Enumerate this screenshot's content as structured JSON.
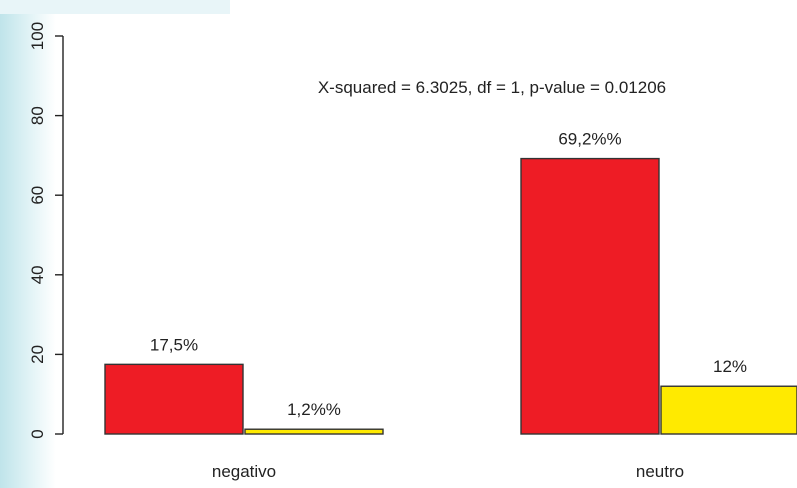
{
  "chart_data": {
    "type": "bar",
    "categories": [
      "negativo",
      "neutro"
    ],
    "series": [
      {
        "color": "#ee1c25",
        "values": [
          17.5,
          69.2
        ],
        "labels": [
          "17,5%",
          "69,2%%"
        ]
      },
      {
        "color": "#ffea00",
        "values": [
          1.2,
          12
        ],
        "labels": [
          "1,2%%",
          "12%"
        ]
      }
    ],
    "annotation": "X-squared = 6.3025, df = 1, p-value = 0.01206",
    "ylim": [
      0,
      100
    ],
    "yticks": [
      0,
      20,
      40,
      60,
      80,
      100
    ],
    "ytick_labels": [
      "0",
      "20",
      "40",
      "60",
      "80",
      "100"
    ],
    "grid": false,
    "legend": "none"
  }
}
